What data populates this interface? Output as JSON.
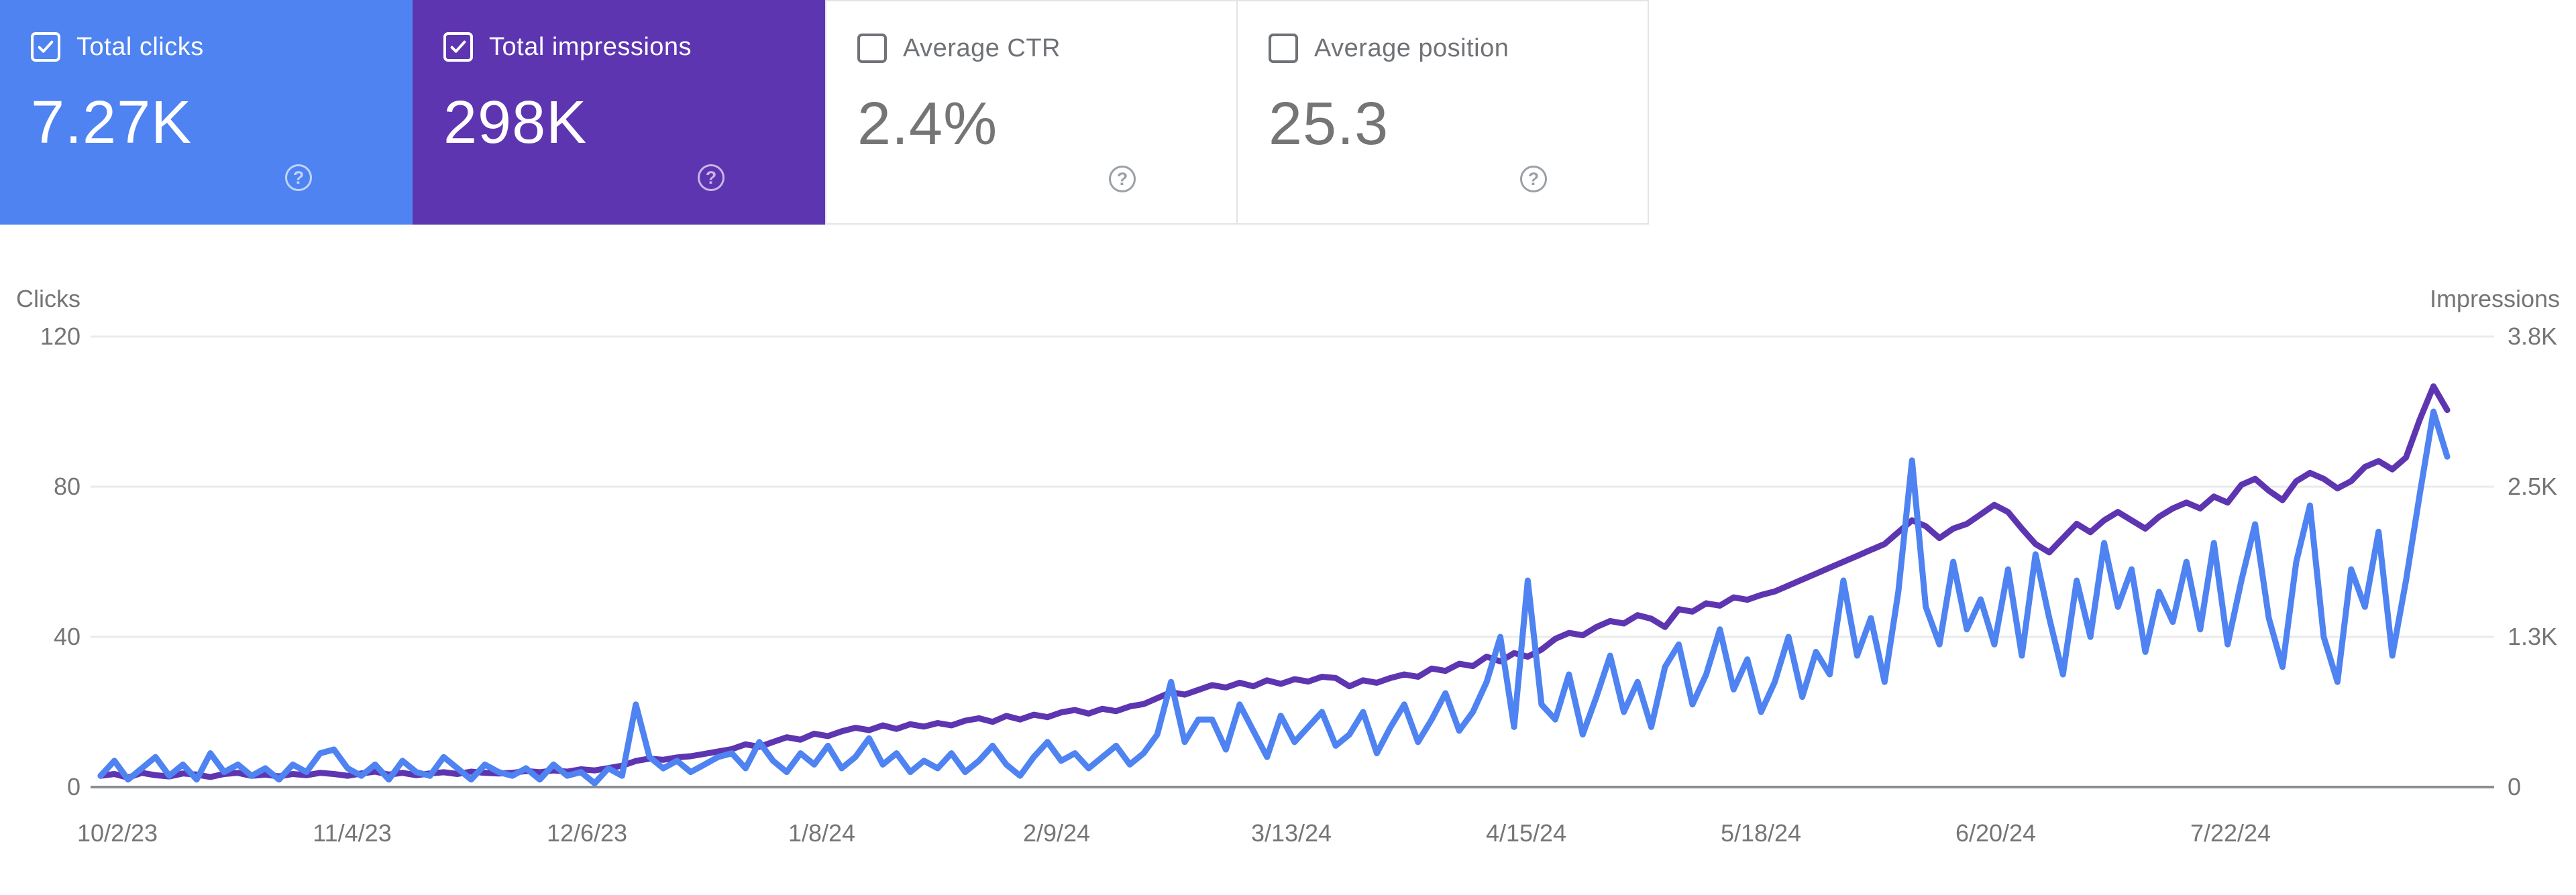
{
  "colors": {
    "clicks_blue": "#4e83f1",
    "impressions_purple": "#5e35b1",
    "card_text_light": "#ffffff",
    "card_text_gray": "#757575",
    "card_label_gray": "#6f7377",
    "grid_line": "#ebebeb",
    "zero_axis_line": "#8a8f94",
    "axis_text": "#757575"
  },
  "cards": [
    {
      "label": "Total clicks",
      "value": "7.27K",
      "checked": true,
      "style": "dark",
      "bg": "#4e83f1"
    },
    {
      "label": "Total impressions",
      "value": "298K",
      "checked": true,
      "style": "dark",
      "bg": "#5e35b1"
    },
    {
      "label": "Average CTR",
      "value": "2.4%",
      "checked": false,
      "style": "light",
      "bg": "#ffffff"
    },
    {
      "label": "Average position",
      "value": "25.3",
      "checked": false,
      "style": "light",
      "bg": "#ffffff"
    }
  ],
  "chart_data": {
    "type": "line",
    "left_axis_title": "Clicks",
    "right_axis_title": "Impressions",
    "left_ticks": [
      "120",
      "80",
      "40",
      "0"
    ],
    "right_ticks": [
      "3.8K",
      "2.5K",
      "1.3K",
      "0"
    ],
    "left_ylim": [
      0,
      120
    ],
    "right_ylim": [
      0,
      3800
    ],
    "x_tick_labels": [
      "10/2/23",
      "11/4/23",
      "12/6/23",
      "1/8/24",
      "2/9/24",
      "3/13/24",
      "4/15/24",
      "5/18/24",
      "6/20/24",
      "7/22/24"
    ],
    "x_range_note": "daily data 10/2/23 through early Sep 2024, sampled every ~2 days",
    "grid": "horizontal only",
    "legend_position": "axis titles top-left and top-right",
    "series": [
      {
        "name": "Clicks",
        "axis": "left",
        "color": "#4e83f1",
        "values": [
          3,
          7,
          2,
          5,
          8,
          3,
          6,
          2,
          9,
          4,
          6,
          3,
          5,
          2,
          6,
          4,
          9,
          10,
          5,
          3,
          6,
          2,
          7,
          4,
          3,
          8,
          5,
          2,
          6,
          4,
          3,
          5,
          2,
          6,
          3,
          4,
          1,
          5,
          3,
          22,
          8,
          5,
          7,
          4,
          6,
          8,
          9,
          5,
          12,
          7,
          4,
          9,
          6,
          11,
          5,
          8,
          13,
          6,
          9,
          4,
          7,
          5,
          9,
          4,
          7,
          11,
          6,
          3,
          8,
          12,
          7,
          9,
          5,
          8,
          11,
          6,
          9,
          14,
          28,
          12,
          18,
          18,
          10,
          22,
          15,
          8,
          19,
          12,
          16,
          20,
          11,
          14,
          20,
          9,
          16,
          22,
          12,
          18,
          25,
          15,
          20,
          28,
          40,
          16,
          55,
          22,
          18,
          30,
          14,
          24,
          35,
          20,
          28,
          16,
          32,
          38,
          22,
          30,
          42,
          26,
          34,
          20,
          28,
          40,
          24,
          36,
          30,
          55,
          35,
          45,
          28,
          52,
          87,
          48,
          38,
          60,
          42,
          50,
          38,
          58,
          35,
          62,
          45,
          30,
          55,
          40,
          65,
          48,
          58,
          36,
          52,
          44,
          60,
          42,
          65,
          38,
          55,
          70,
          45,
          32,
          60,
          75,
          40,
          28,
          58,
          48,
          68,
          35,
          55,
          78,
          100,
          88
        ]
      },
      {
        "name": "Impressions",
        "axis": "right",
        "color": "#5e35b1",
        "values": [
          95,
          110,
          80,
          120,
          100,
          90,
          115,
          105,
          85,
          110,
          120,
          95,
          105,
          90,
          110,
          100,
          120,
          110,
          95,
          115,
          130,
          105,
          120,
          100,
          115,
          125,
          110,
          130,
          120,
          115,
          120,
          135,
          125,
          140,
          130,
          150,
          140,
          160,
          180,
          220,
          240,
          230,
          250,
          260,
          280,
          300,
          320,
          360,
          340,
          380,
          420,
          400,
          450,
          430,
          470,
          500,
          480,
          520,
          490,
          530,
          510,
          540,
          520,
          560,
          580,
          550,
          600,
          570,
          610,
          590,
          630,
          650,
          620,
          660,
          640,
          680,
          700,
          750,
          800,
          780,
          820,
          860,
          840,
          880,
          850,
          900,
          870,
          910,
          890,
          930,
          920,
          850,
          900,
          880,
          920,
          950,
          930,
          1000,
          980,
          1040,
          1020,
          1100,
          1060,
          1130,
          1100,
          1160,
          1250,
          1300,
          1280,
          1350,
          1400,
          1380,
          1450,
          1420,
          1350,
          1500,
          1480,
          1550,
          1530,
          1600,
          1580,
          1620,
          1650,
          1700,
          1750,
          1800,
          1850,
          1900,
          1950,
          2000,
          2050,
          2150,
          2250,
          2200,
          2100,
          2180,
          2220,
          2300,
          2380,
          2320,
          2180,
          2050,
          1980,
          2100,
          2220,
          2150,
          2250,
          2320,
          2250,
          2180,
          2280,
          2350,
          2400,
          2350,
          2450,
          2400,
          2550,
          2600,
          2500,
          2420,
          2580,
          2650,
          2600,
          2520,
          2580,
          2700,
          2750,
          2680,
          2780,
          3100,
          3380,
          3180
        ]
      }
    ]
  }
}
